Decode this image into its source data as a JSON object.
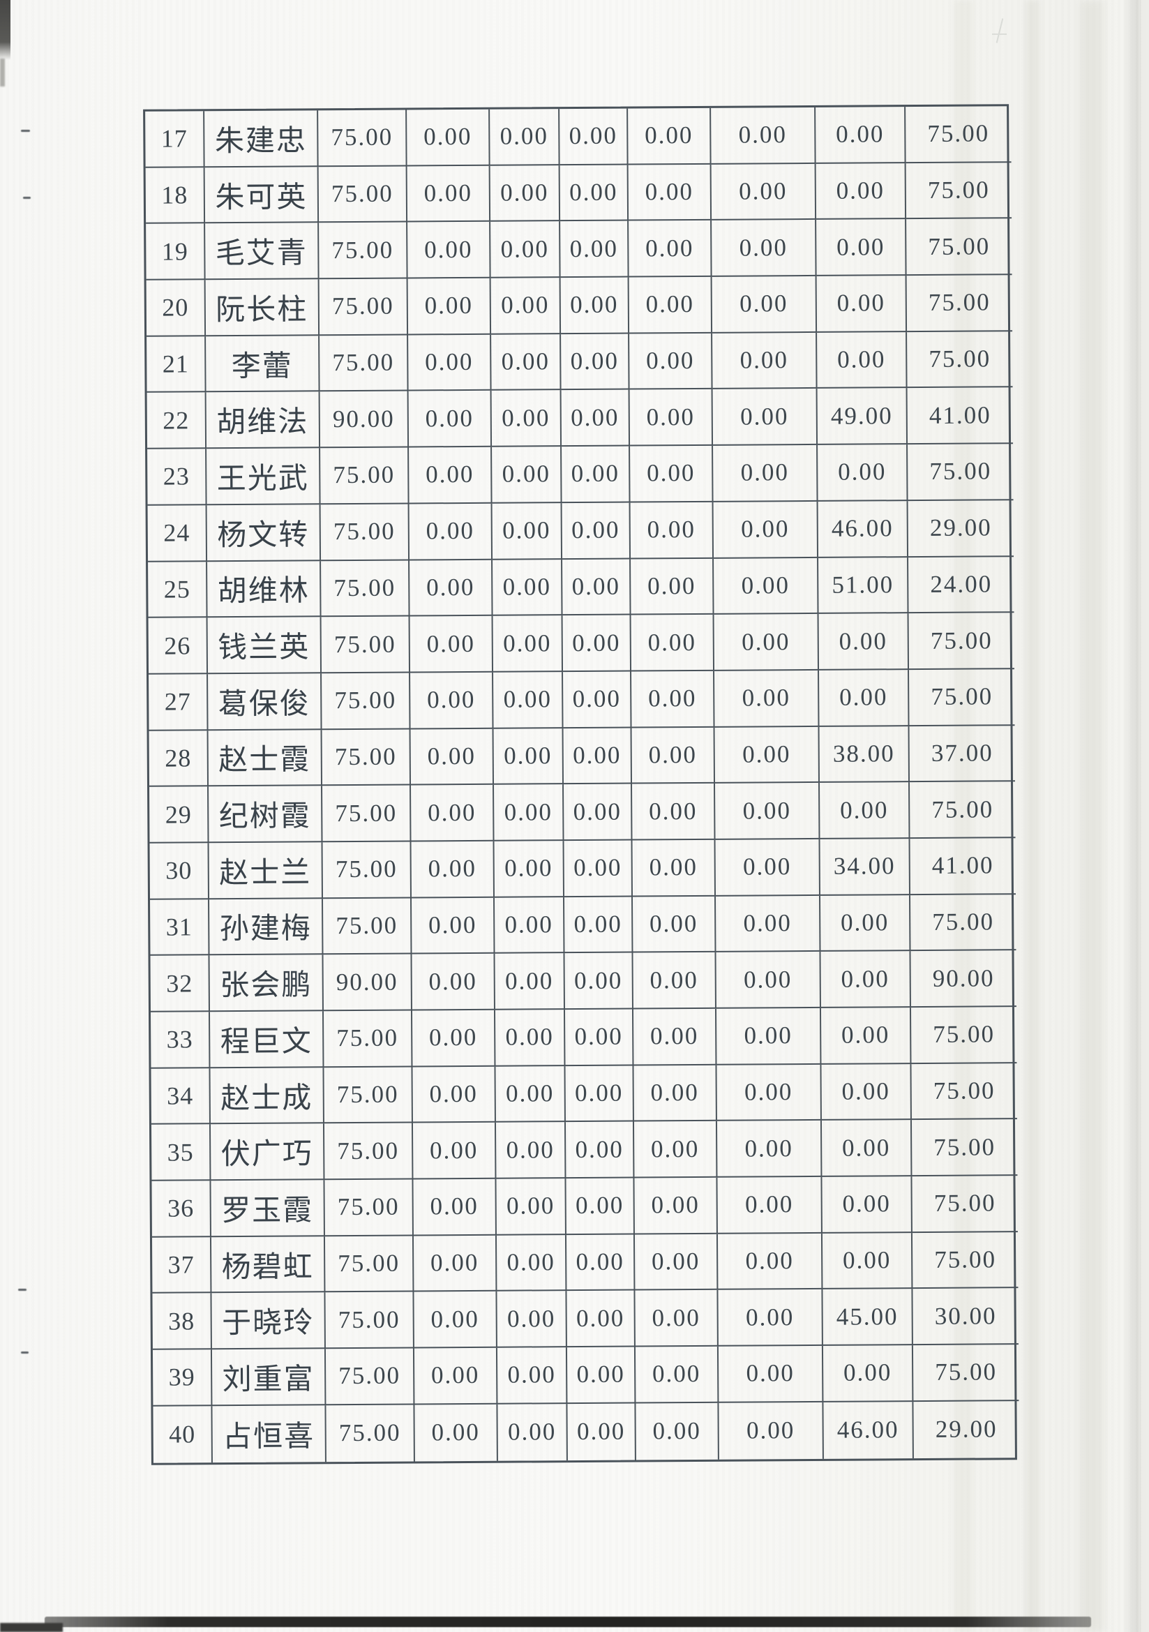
{
  "table": {
    "rows": [
      {
        "no": "17",
        "name": "朱建忠",
        "values": [
          "75.00",
          "0.00",
          "0.00",
          "0.00",
          "0.00",
          "0.00",
          "0.00",
          "75.00"
        ]
      },
      {
        "no": "18",
        "name": "朱可英",
        "values": [
          "75.00",
          "0.00",
          "0.00",
          "0.00",
          "0.00",
          "0.00",
          "0.00",
          "75.00"
        ]
      },
      {
        "no": "19",
        "name": "毛艾青",
        "values": [
          "75.00",
          "0.00",
          "0.00",
          "0.00",
          "0.00",
          "0.00",
          "0.00",
          "75.00"
        ]
      },
      {
        "no": "20",
        "name": "阮长柱",
        "values": [
          "75.00",
          "0.00",
          "0.00",
          "0.00",
          "0.00",
          "0.00",
          "0.00",
          "75.00"
        ]
      },
      {
        "no": "21",
        "name": "李蕾",
        "values": [
          "75.00",
          "0.00",
          "0.00",
          "0.00",
          "0.00",
          "0.00",
          "0.00",
          "75.00"
        ]
      },
      {
        "no": "22",
        "name": "胡维法",
        "values": [
          "90.00",
          "0.00",
          "0.00",
          "0.00",
          "0.00",
          "0.00",
          "49.00",
          "41.00"
        ]
      },
      {
        "no": "23",
        "name": "王光武",
        "values": [
          "75.00",
          "0.00",
          "0.00",
          "0.00",
          "0.00",
          "0.00",
          "0.00",
          "75.00"
        ]
      },
      {
        "no": "24",
        "name": "杨文转",
        "values": [
          "75.00",
          "0.00",
          "0.00",
          "0.00",
          "0.00",
          "0.00",
          "46.00",
          "29.00"
        ]
      },
      {
        "no": "25",
        "name": "胡维林",
        "values": [
          "75.00",
          "0.00",
          "0.00",
          "0.00",
          "0.00",
          "0.00",
          "51.00",
          "24.00"
        ]
      },
      {
        "no": "26",
        "name": "钱兰英",
        "values": [
          "75.00",
          "0.00",
          "0.00",
          "0.00",
          "0.00",
          "0.00",
          "0.00",
          "75.00"
        ]
      },
      {
        "no": "27",
        "name": "葛保俊",
        "values": [
          "75.00",
          "0.00",
          "0.00",
          "0.00",
          "0.00",
          "0.00",
          "0.00",
          "75.00"
        ]
      },
      {
        "no": "28",
        "name": "赵士霞",
        "values": [
          "75.00",
          "0.00",
          "0.00",
          "0.00",
          "0.00",
          "0.00",
          "38.00",
          "37.00"
        ]
      },
      {
        "no": "29",
        "name": "纪树霞",
        "values": [
          "75.00",
          "0.00",
          "0.00",
          "0.00",
          "0.00",
          "0.00",
          "0.00",
          "75.00"
        ]
      },
      {
        "no": "30",
        "name": "赵士兰",
        "values": [
          "75.00",
          "0.00",
          "0.00",
          "0.00",
          "0.00",
          "0.00",
          "34.00",
          "41.00"
        ]
      },
      {
        "no": "31",
        "name": "孙建梅",
        "values": [
          "75.00",
          "0.00",
          "0.00",
          "0.00",
          "0.00",
          "0.00",
          "0.00",
          "75.00"
        ]
      },
      {
        "no": "32",
        "name": "张会鹏",
        "values": [
          "90.00",
          "0.00",
          "0.00",
          "0.00",
          "0.00",
          "0.00",
          "0.00",
          "90.00"
        ]
      },
      {
        "no": "33",
        "name": "程巨文",
        "values": [
          "75.00",
          "0.00",
          "0.00",
          "0.00",
          "0.00",
          "0.00",
          "0.00",
          "75.00"
        ]
      },
      {
        "no": "34",
        "name": "赵士成",
        "values": [
          "75.00",
          "0.00",
          "0.00",
          "0.00",
          "0.00",
          "0.00",
          "0.00",
          "75.00"
        ]
      },
      {
        "no": "35",
        "name": "伏广巧",
        "values": [
          "75.00",
          "0.00",
          "0.00",
          "0.00",
          "0.00",
          "0.00",
          "0.00",
          "75.00"
        ]
      },
      {
        "no": "36",
        "name": "罗玉霞",
        "values": [
          "75.00",
          "0.00",
          "0.00",
          "0.00",
          "0.00",
          "0.00",
          "0.00",
          "75.00"
        ]
      },
      {
        "no": "37",
        "name": "杨碧虹",
        "values": [
          "75.00",
          "0.00",
          "0.00",
          "0.00",
          "0.00",
          "0.00",
          "0.00",
          "75.00"
        ]
      },
      {
        "no": "38",
        "name": "于晓玲",
        "values": [
          "75.00",
          "0.00",
          "0.00",
          "0.00",
          "0.00",
          "0.00",
          "45.00",
          "30.00"
        ]
      },
      {
        "no": "39",
        "name": "刘重富",
        "values": [
          "75.00",
          "0.00",
          "0.00",
          "0.00",
          "0.00",
          "0.00",
          "0.00",
          "75.00"
        ]
      },
      {
        "no": "40",
        "name": "占恒喜",
        "values": [
          "75.00",
          "0.00",
          "0.00",
          "0.00",
          "0.00",
          "0.00",
          "46.00",
          "29.00"
        ]
      }
    ]
  }
}
